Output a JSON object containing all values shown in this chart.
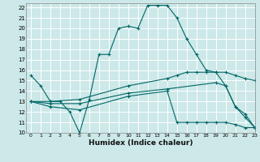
{
  "title": "",
  "xlabel": "Humidex (Indice chaleur)",
  "xlim": [
    -0.5,
    23
  ],
  "ylim": [
    10,
    22.4
  ],
  "yticks": [
    10,
    11,
    12,
    13,
    14,
    15,
    16,
    17,
    18,
    19,
    20,
    21,
    22
  ],
  "xticks": [
    0,
    1,
    2,
    3,
    4,
    5,
    6,
    7,
    8,
    9,
    10,
    11,
    12,
    13,
    14,
    15,
    16,
    17,
    18,
    19,
    20,
    21,
    22,
    23
  ],
  "bg_color": "#cce8e8",
  "grid_color": "#ffffff",
  "line_color": "#006666",
  "lines": [
    {
      "x": [
        0,
        1,
        2,
        3,
        4,
        5,
        6,
        7,
        8,
        9,
        10,
        11,
        12,
        13,
        14,
        15,
        16,
        17,
        18,
        19,
        20,
        21,
        22,
        23
      ],
      "y": [
        15.5,
        14.5,
        13.0,
        13.0,
        12.0,
        10.0,
        13.2,
        17.5,
        17.5,
        20.0,
        20.2,
        20.0,
        22.2,
        22.2,
        22.2,
        21.0,
        19.0,
        17.5,
        16.0,
        15.8,
        14.5,
        12.5,
        11.8,
        10.5
      ],
      "marker": "+"
    },
    {
      "x": [
        0,
        2,
        5,
        10,
        14,
        15,
        16,
        17,
        18,
        19,
        20,
        21,
        22,
        23
      ],
      "y": [
        13.0,
        13.0,
        13.2,
        14.5,
        15.2,
        15.5,
        15.8,
        15.8,
        15.8,
        15.8,
        15.8,
        15.5,
        15.2,
        15.0
      ],
      "marker": "+"
    },
    {
      "x": [
        0,
        2,
        5,
        10,
        14,
        19,
        20,
        21,
        22,
        23
      ],
      "y": [
        13.0,
        12.8,
        12.8,
        13.8,
        14.2,
        14.8,
        14.5,
        12.5,
        11.5,
        10.5
      ],
      "marker": "+"
    },
    {
      "x": [
        0,
        2,
        5,
        10,
        14,
        15,
        16,
        17,
        18,
        19,
        20,
        21,
        22,
        23
      ],
      "y": [
        13.0,
        12.5,
        12.2,
        13.5,
        14.0,
        11.0,
        11.0,
        11.0,
        11.0,
        11.0,
        11.0,
        10.8,
        10.5,
        10.5
      ],
      "marker": "+"
    }
  ]
}
